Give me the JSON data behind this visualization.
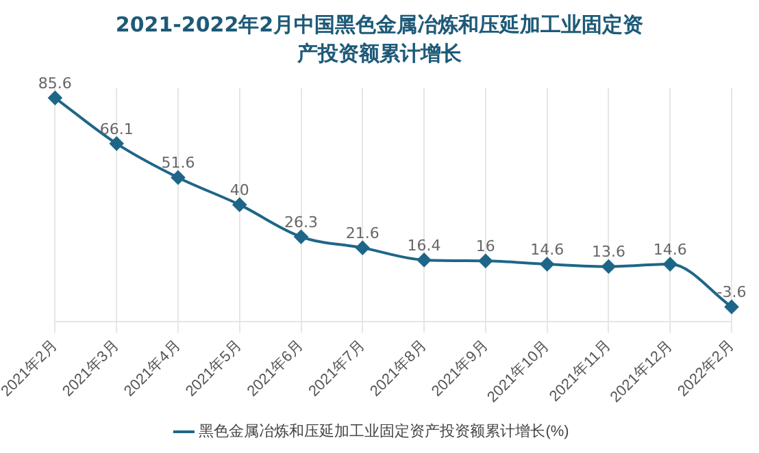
{
  "chart_data": {
    "type": "line",
    "title": "2021-2022年2月中国黑色金属冶炼和压延加工业固定资产投资额累计增长",
    "categories": [
      "2021年2月",
      "2021年3月",
      "2021年4月",
      "2021年5月",
      "2021年6月",
      "2021年7月",
      "2021年8月",
      "2021年9月",
      "2021年10月",
      "2021年11月",
      "2021年12月",
      "2022年2月"
    ],
    "series": [
      {
        "name": "黑色金属冶炼和压延加工业固定资产投资额累计增长(%)",
        "color": "#1e6688",
        "values": [
          85.6,
          66.1,
          51.6,
          40,
          26.3,
          21.6,
          16.4,
          16,
          14.6,
          13.6,
          14.6,
          -3.6
        ]
      }
    ],
    "data_labels": true,
    "marker": "diamond",
    "legend": "bottom",
    "grid": "x",
    "tick_labels": "x"
  }
}
